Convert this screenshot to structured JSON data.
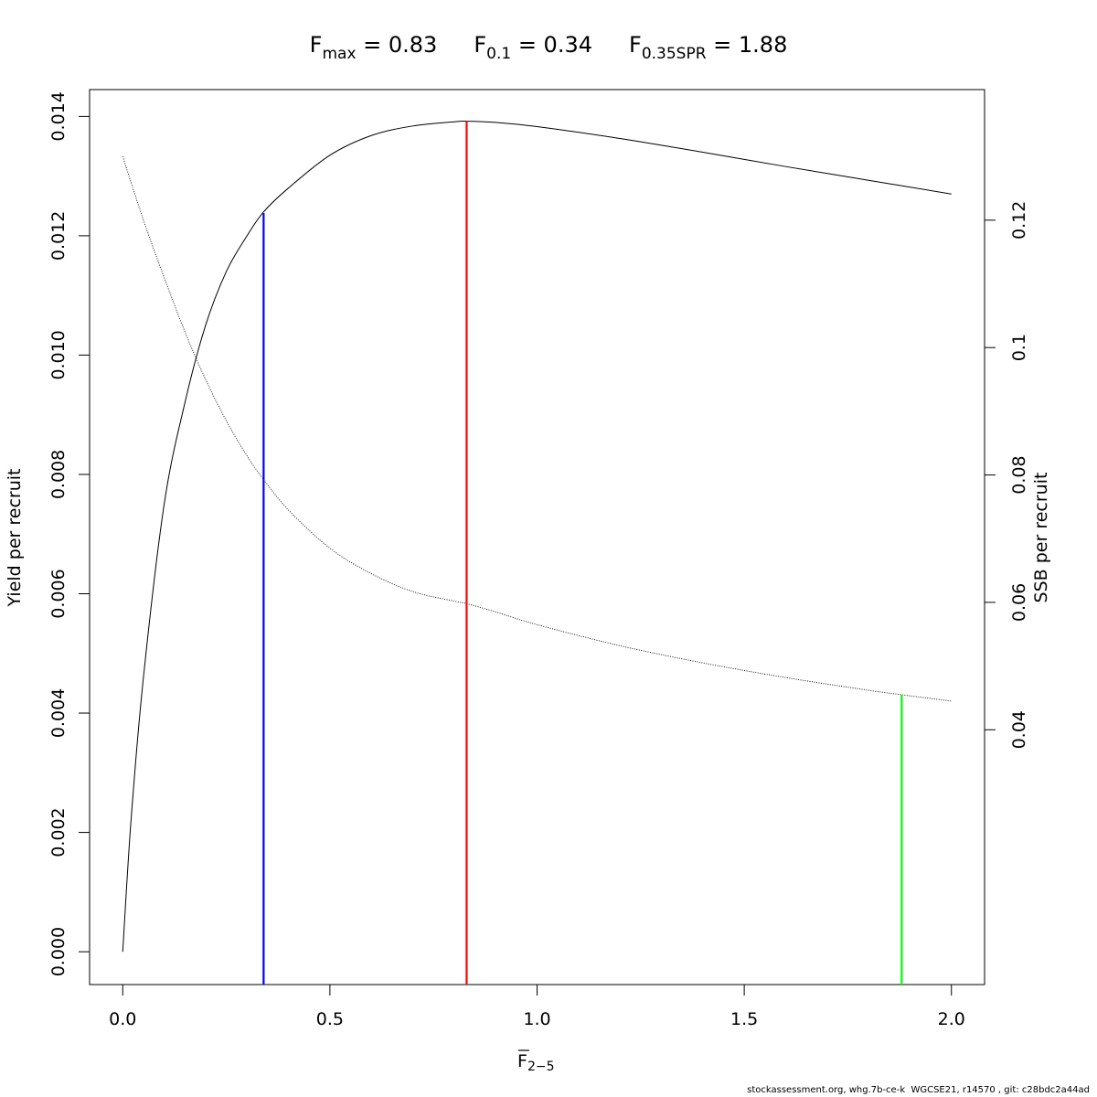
{
  "title": {
    "fmax": {
      "base": "F",
      "sub": "max",
      "value": " = 0.83"
    },
    "f01": {
      "base": "F",
      "sub": "0.1",
      "value": " = 0.34"
    },
    "fspr": {
      "base": "F",
      "sub": "0.35SPR",
      "value": " = 1.88"
    }
  },
  "xlabel": {
    "base": "F",
    "sub": "2−5"
  },
  "ylabel_left": "Yield per recruit",
  "ylabel_right": "SSB per recruit",
  "footer": "stockassessment.org, whg.7b-ce-k  WGCSE21, r14570 , git: c28bdc2a44ad",
  "chart_data": {
    "type": "line",
    "xlim": [
      -0.08,
      2.08
    ],
    "ylim_left": [
      -0.00055,
      0.01445
    ],
    "ylim_right": [
      0.0,
      0.1405
    ],
    "x_ticks": [
      0.0,
      0.5,
      1.0,
      1.5,
      2.0
    ],
    "x_tick_labels": [
      "0.0",
      "0.5",
      "1.0",
      "1.5",
      "2.0"
    ],
    "y_left_ticks": [
      0.0,
      0.002,
      0.004,
      0.006,
      0.008,
      0.01,
      0.012,
      0.014
    ],
    "y_left_tick_labels": [
      "0.000",
      "0.002",
      "0.004",
      "0.006",
      "0.008",
      "0.010",
      "0.012",
      "0.014"
    ],
    "y_right_ticks": [
      0.04,
      0.06,
      0.08,
      0.1,
      0.12
    ],
    "y_right_tick_labels": [
      "0.04",
      "0.06",
      "0.08",
      "0.1",
      "0.12"
    ],
    "series": [
      {
        "axis": "left",
        "style": "solid",
        "color": "#000000",
        "x": [
          0.0,
          0.02,
          0.05,
          0.1,
          0.15,
          0.2,
          0.25,
          0.3,
          0.34,
          0.4,
          0.5,
          0.6,
          0.7,
          0.8,
          0.83,
          0.9,
          1.0,
          1.2,
          1.4,
          1.6,
          1.8,
          2.0
        ],
        "y": [
          0.0,
          0.0022,
          0.0046,
          0.0075,
          0.0092,
          0.0105,
          0.0114,
          0.012,
          0.0124,
          0.0128,
          0.01335,
          0.01368,
          0.01384,
          0.01391,
          0.01392,
          0.0139,
          0.01383,
          0.01363,
          0.0134,
          0.01316,
          0.01293,
          0.0127
        ]
      },
      {
        "axis": "right",
        "style": "dotted",
        "color": "#000000",
        "x": [
          0.0,
          0.05,
          0.1,
          0.15,
          0.2,
          0.25,
          0.3,
          0.34,
          0.4,
          0.5,
          0.6,
          0.7,
          0.8,
          0.83,
          0.9,
          1.0,
          1.2,
          1.4,
          1.6,
          1.8,
          1.88,
          2.0
        ],
        "y": [
          0.13,
          0.12,
          0.111,
          0.1025,
          0.095,
          0.0885,
          0.083,
          0.0793,
          0.0745,
          0.0685,
          0.0645,
          0.0617,
          0.0602,
          0.0598,
          0.0585,
          0.0565,
          0.0532,
          0.0505,
          0.0482,
          0.0462,
          0.0455,
          0.0445
        ]
      }
    ],
    "reference_lines": [
      {
        "x": 0.34,
        "axis": "left",
        "y_top": 0.01238,
        "color": "#0000ff"
      },
      {
        "x": 0.83,
        "axis": "left",
        "y_top": 0.01392,
        "color": "#ff0000"
      },
      {
        "x": 1.88,
        "axis": "right",
        "y_top": 0.0455,
        "color": "#00ff00"
      }
    ]
  }
}
